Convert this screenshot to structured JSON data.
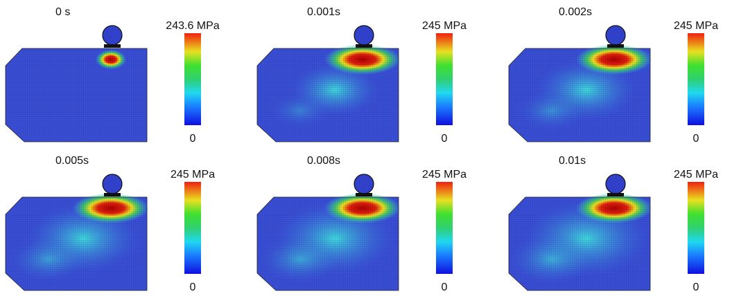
{
  "panels": [
    {
      "time": "0 s",
      "max_label": "243.6 MPa",
      "min_label": "0"
    },
    {
      "time": "0.001s",
      "max_label": "245 MPa",
      "min_label": "0"
    },
    {
      "time": "0.002s",
      "max_label": "245 MPa",
      "min_label": "0"
    },
    {
      "time": "0.005s",
      "max_label": "245 MPa",
      "min_label": "0"
    },
    {
      "time": "0.008s",
      "max_label": "245 MPa",
      "min_label": "0"
    },
    {
      "time": "0.01s",
      "max_label": "245 MPa",
      "min_label": "0"
    }
  ]
}
